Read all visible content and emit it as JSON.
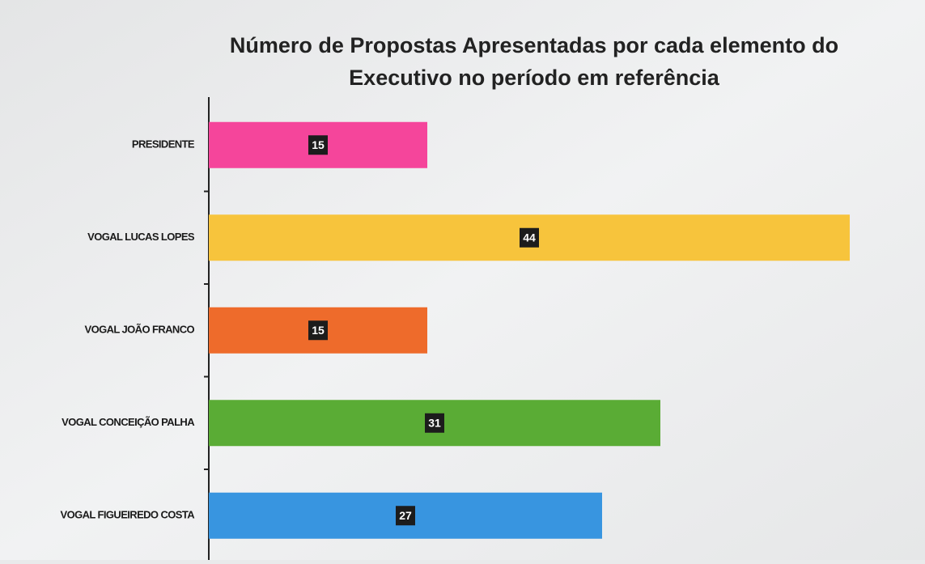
{
  "chart_data": {
    "type": "bar",
    "orientation": "horizontal",
    "title": [
      "Número de Propostas Apresentadas por cada elemento do",
      "Executivo no período em referência"
    ],
    "categories": [
      "PRESIDENTE",
      "VOGAL LUCAS LOPES",
      "VOGAL JOÃO FRANCO",
      "VOGAL CONCEIÇÃO PALHA",
      "VOGAL FIGUEIREDO COSTA"
    ],
    "values": [
      15,
      44,
      15,
      31,
      27
    ],
    "colors": [
      "#f5459b",
      "#f7c43c",
      "#ee6b2b",
      "#5aac35",
      "#3895e0"
    ]
  }
}
